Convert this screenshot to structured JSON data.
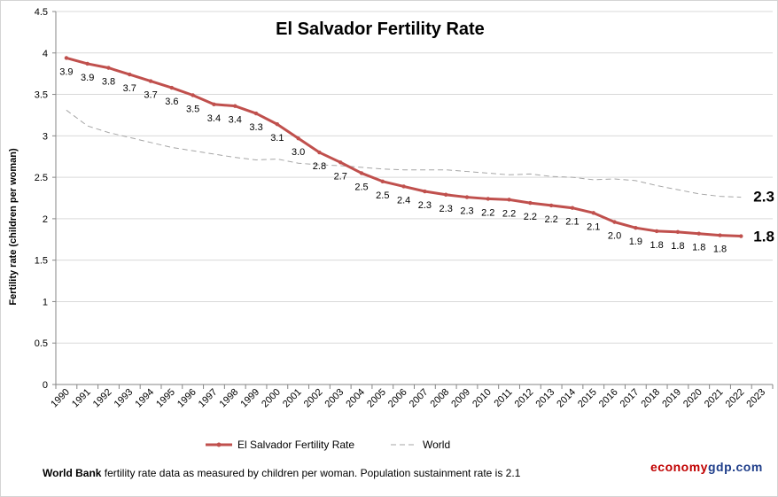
{
  "chart_data": {
    "type": "line",
    "title": "El Salvador Fertility Rate",
    "ylabel": "Fertility rate (children per woman)",
    "xlabel": "",
    "ylim": [
      0,
      4.5
    ],
    "yticks": [
      "0",
      "0.5",
      "1",
      "1.5",
      "2",
      "2.5",
      "3",
      "3.5",
      "4",
      "4.5"
    ],
    "categories": [
      "1990",
      "1991",
      "1992",
      "1993",
      "1994",
      "1995",
      "1996",
      "1997",
      "1998",
      "1999",
      "2000",
      "2001",
      "2002",
      "2003",
      "2004",
      "2005",
      "2006",
      "2007",
      "2008",
      "2009",
      "2010",
      "2011",
      "2012",
      "2013",
      "2014",
      "2015",
      "2016",
      "2017",
      "2018",
      "2019",
      "2020",
      "2021",
      "2022",
      "2023"
    ],
    "series": [
      {
        "name": "El Salvador Fertility Rate",
        "color": "#c0504d",
        "style": "solid",
        "values": [
          3.94,
          3.87,
          3.82,
          3.74,
          3.66,
          3.58,
          3.49,
          3.38,
          3.36,
          3.27,
          3.14,
          2.97,
          2.8,
          2.68,
          2.55,
          2.45,
          2.39,
          2.33,
          2.29,
          2.26,
          2.24,
          2.23,
          2.19,
          2.16,
          2.13,
          2.07,
          1.96,
          1.89,
          1.85,
          1.84,
          1.82,
          1.8,
          1.79,
          null
        ],
        "data_labels": [
          "3.9",
          "3.9",
          "3.8",
          "3.7",
          "3.7",
          "3.6",
          "3.5",
          "3.4",
          "3.4",
          "3.3",
          "3.1",
          "3.0",
          "2.8",
          "2.7",
          "2.5",
          "2.5",
          "2.4",
          "2.3",
          "2.3",
          "2.3",
          "2.2",
          "2.2",
          "2.2",
          "2.2",
          "2.1",
          "2.1",
          "2.0",
          "1.9",
          "1.8",
          "1.8",
          "1.8",
          "1.8",
          "",
          ""
        ],
        "end_label": "1.8"
      },
      {
        "name": "World",
        "color": "#a6a6a6",
        "style": "dashed",
        "values": [
          3.31,
          3.12,
          3.04,
          2.98,
          2.92,
          2.86,
          2.82,
          2.78,
          2.74,
          2.71,
          2.72,
          2.67,
          2.65,
          2.64,
          2.62,
          2.6,
          2.59,
          2.59,
          2.59,
          2.57,
          2.55,
          2.53,
          2.54,
          2.51,
          2.5,
          2.47,
          2.48,
          2.46,
          2.4,
          2.35,
          2.3,
          2.27,
          2.26,
          null
        ],
        "end_label": "2.3"
      }
    ],
    "grid": "horizontal",
    "legend": "bottom-center"
  },
  "footnote": {
    "source": "World Bank",
    "text": " fertility rate data as measured by children per woman.  Population sustainment rate is 2.1"
  },
  "brand": {
    "part1": "economy",
    "part2": "gdp.com"
  }
}
